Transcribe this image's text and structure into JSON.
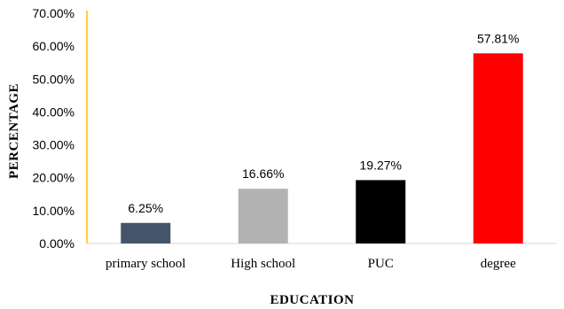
{
  "chart_data": {
    "type": "bar",
    "categories": [
      "primary school",
      "High school",
      "PUC",
      "degree"
    ],
    "values": [
      6.25,
      16.66,
      19.27,
      57.81
    ],
    "data_labels": [
      "6.25%",
      "16.66%",
      "19.27%",
      "57.81%"
    ],
    "bar_colors": [
      "#44546a",
      "#b3b3b3",
      "#000000",
      "#ff0000"
    ],
    "title": "",
    "xlabel": "EDUCATION",
    "ylabel": "PERCENTAGE",
    "ylim": [
      0,
      70
    ],
    "y_ticks": [
      0,
      10,
      20,
      30,
      40,
      50,
      60,
      70
    ],
    "y_tick_labels": [
      "0.00%",
      "10.00%",
      "20.00%",
      "30.00%",
      "40.00%",
      "50.00%",
      "60.00%",
      "70.00%"
    ],
    "grid": false,
    "legend": "none",
    "y_axis_color": "#ffc000",
    "x_axis_color": "#d9d9d9"
  }
}
